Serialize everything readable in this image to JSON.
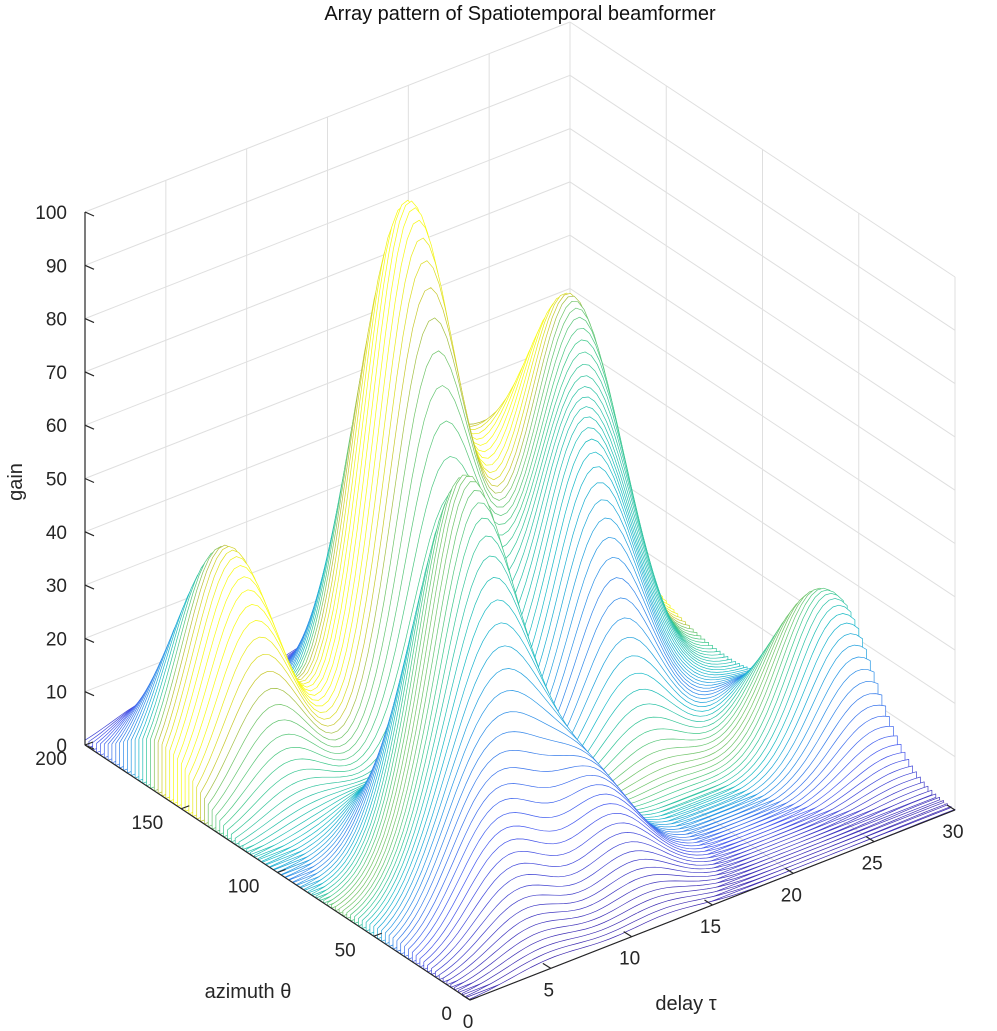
{
  "chart_data": {
    "type": "surface",
    "title": "Array pattern of Spatiotemporal beamformer",
    "xlabel": "delay τ",
    "ylabel": "azimuth θ",
    "zlabel": "gain",
    "xlim": [
      0,
      30
    ],
    "ylim": [
      0,
      200
    ],
    "zlim": [
      0,
      100
    ],
    "x_ticks": [
      "0",
      "5",
      "10",
      "15",
      "20",
      "25",
      "30"
    ],
    "y_ticks": [
      "0",
      "50",
      "100",
      "150",
      "200"
    ],
    "z_ticks": [
      "0",
      "10",
      "20",
      "30",
      "40",
      "50",
      "60",
      "70",
      "80",
      "90",
      "100"
    ],
    "grid": true,
    "colormap": "parula",
    "peaks": [
      {
        "delay": 14,
        "azimuth": 150,
        "gain": 95
      },
      {
        "delay": 23,
        "azimuth": 140,
        "gain": 62
      },
      {
        "delay": 8,
        "azimuth": 70,
        "gain": 69
      },
      {
        "delay": 20,
        "azimuth": 110,
        "gain": 46
      },
      {
        "delay": 19,
        "azimuth": 170,
        "gain": 34
      },
      {
        "delay": 4,
        "azimuth": 160,
        "gain": 42
      },
      {
        "delay": 29,
        "azimuth": 60,
        "gain": 28
      },
      {
        "delay": 26,
        "azimuth": 175,
        "gain": 30
      },
      {
        "delay": 5,
        "azimuth": 40,
        "gain": 20
      },
      {
        "delay": 12,
        "azimuth": 40,
        "gain": 18
      }
    ]
  }
}
